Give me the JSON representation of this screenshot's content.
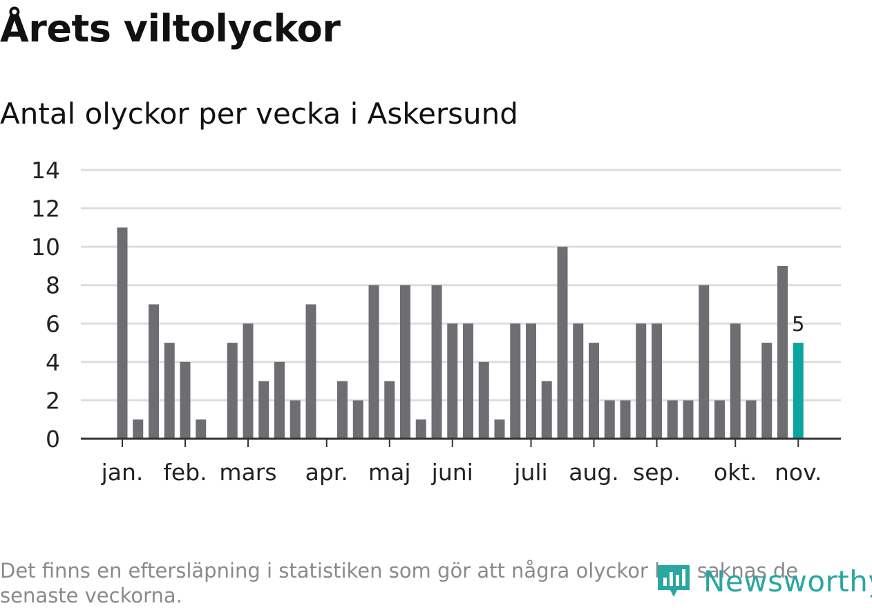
{
  "title": "Årets viltolyckor",
  "subtitle": "Antal olyckor per vecka i Askersund",
  "footnote": "Det finns en eftersläpning i statistiken som gör att några olyckor kan saknas de senaste veckorna.",
  "brand": {
    "name": "Newsworthy",
    "icon": "newsworthy-logo-icon",
    "color": "#2aa6a3"
  },
  "chart_data": {
    "type": "bar",
    "title": "Antal olyckor per vecka i Askersund",
    "xlabel": "",
    "ylabel": "",
    "ylim": [
      0,
      14
    ],
    "yticks": [
      0,
      2,
      4,
      6,
      8,
      10,
      12,
      14
    ],
    "grid": true,
    "colors": {
      "bar": "#6e6d72",
      "highlight": "#0da49f",
      "grid": "#dddddd",
      "baseline": "#333333"
    },
    "values": [
      11,
      1,
      7,
      5,
      4,
      1,
      0,
      5,
      6,
      3,
      4,
      2,
      7,
      0,
      3,
      2,
      8,
      3,
      8,
      1,
      8,
      6,
      6,
      4,
      1,
      6,
      6,
      3,
      10,
      6,
      5,
      2,
      2,
      6,
      6,
      2,
      2,
      8,
      2,
      6,
      2,
      5,
      9,
      5
    ],
    "highlight_index": 43,
    "highlight_label": "5",
    "month_ticks": [
      {
        "label": "jan.",
        "week_index": 0
      },
      {
        "label": "feb.",
        "week_index": 4
      },
      {
        "label": "mars",
        "week_index": 8
      },
      {
        "label": "apr.",
        "week_index": 13
      },
      {
        "label": "maj",
        "week_index": 17
      },
      {
        "label": "juni",
        "week_index": 21
      },
      {
        "label": "juli",
        "week_index": 26
      },
      {
        "label": "aug.",
        "week_index": 30
      },
      {
        "label": "sep.",
        "week_index": 34
      },
      {
        "label": "okt.",
        "week_index": 39
      },
      {
        "label": "nov.",
        "week_index": 43
      }
    ]
  }
}
